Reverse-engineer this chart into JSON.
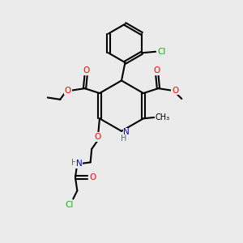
{
  "background_color": "#ebebeb",
  "atom_colors": {
    "C": "#000000",
    "O": "#ff0000",
    "N": "#0000cc",
    "Cl": "#00bb00",
    "H": "#666666"
  },
  "bond_color": "#000000",
  "bond_width": 1.5,
  "figsize": [
    3.0,
    3.0
  ],
  "dpi": 100
}
